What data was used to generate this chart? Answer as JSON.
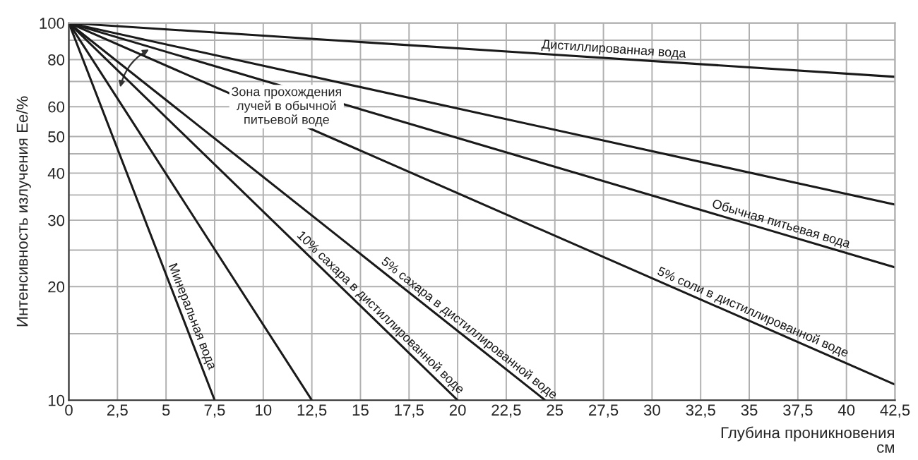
{
  "chart_data": {
    "type": "line",
    "xlabel": "Глубина проникновения\nсм",
    "ylabel": "Интенсивность излучения Ee/%",
    "log": "y",
    "grid": true,
    "line_style": "solid",
    "marker": "none",
    "xlim": [
      0,
      42.5
    ],
    "ylim": [
      10,
      100
    ],
    "xticks": [
      0,
      {
        "value": 2.5,
        "label": "2,5"
      },
      5,
      {
        "value": 7.5,
        "label": "7,5"
      },
      10,
      {
        "value": 12.5,
        "label": "12,5"
      },
      15,
      {
        "value": 17.5,
        "label": "17,5"
      },
      20,
      {
        "value": 22.5,
        "label": "22,5"
      },
      25,
      {
        "value": 27.5,
        "label": "27,5"
      },
      30,
      {
        "value": 32.5,
        "label": "32,5"
      },
      35,
      {
        "value": 37.5,
        "label": "37,5"
      },
      40,
      {
        "value": 42.5,
        "label": "42,5"
      }
    ],
    "yticks": [
      10,
      {
        "value": 15,
        "label": null
      },
      20,
      {
        "value": 25,
        "label": null
      },
      30,
      {
        "value": 35,
        "label": null
      },
      40,
      {
        "value": 45,
        "label": null
      },
      50,
      60,
      {
        "value": 70,
        "label": null
      },
      80,
      {
        "value": 90,
        "label": null
      },
      100
    ],
    "series": [
      {
        "name": "Дистиллированная вода",
        "color": "#1a1a1a",
        "x": [
          0,
          42.5
        ],
        "values": [
          100,
          72
        ]
      },
      {
        "color": "#1a1a1a",
        "x": [
          0,
          42.5
        ],
        "values": [
          100,
          33
        ]
      },
      {
        "name": "Обычная питьевая вода",
        "color": "#1a1a1a",
        "x": [
          0,
          42.5
        ],
        "values": [
          100,
          22.5
        ]
      },
      {
        "name": "5% соли в дистиллированной воде",
        "color": "#1a1a1a",
        "x": [
          0,
          42.5
        ],
        "values": [
          100,
          11
        ]
      },
      {
        "name": "5% сахара в дистиллированной воде",
        "color": "#1a1a1a",
        "x": [
          0,
          24.5
        ],
        "values": [
          100,
          10
        ]
      },
      {
        "name": "10% сахара в дистиллированной воде",
        "color": "#1a1a1a",
        "x": [
          0,
          20
        ],
        "values": [
          100,
          10
        ]
      },
      {
        "color": "#1a1a1a",
        "x": [
          0,
          12.5
        ],
        "values": [
          100,
          10
        ]
      },
      {
        "name": "Минеральная вода",
        "color": "#1a1a1a",
        "x": [
          0,
          7.5
        ],
        "values": [
          100,
          10
        ]
      }
    ],
    "annotations": [
      "Зона прохождения\nлучей в обычной\nпитьевой воде"
    ]
  }
}
